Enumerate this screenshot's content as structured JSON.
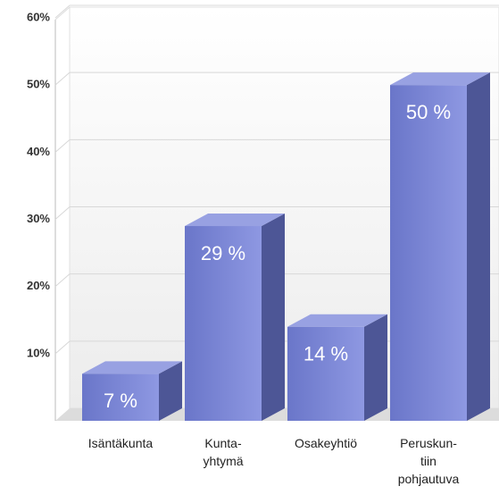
{
  "chart_data": {
    "type": "bar3d",
    "categories": [
      "Isäntäkunta",
      "Kunta-\nyhtymä",
      "Osakeyhtiö",
      "Peruskun-\ntiin\npohjautuva"
    ],
    "values": [
      7,
      29,
      14,
      50
    ],
    "value_labels": [
      "7 %",
      "29 %",
      "14 %",
      "50 %"
    ],
    "color": "#7d88d8",
    "ylim": [
      0,
      60
    ],
    "yticks": [
      {
        "value": 10,
        "label": "10%"
      },
      {
        "value": 20,
        "label": "20%"
      },
      {
        "value": 30,
        "label": "30%"
      },
      {
        "value": 40,
        "label": "40%"
      },
      {
        "value": 50,
        "label": "50%"
      },
      {
        "value": 60,
        "label": "60%"
      }
    ],
    "grid": true
  }
}
